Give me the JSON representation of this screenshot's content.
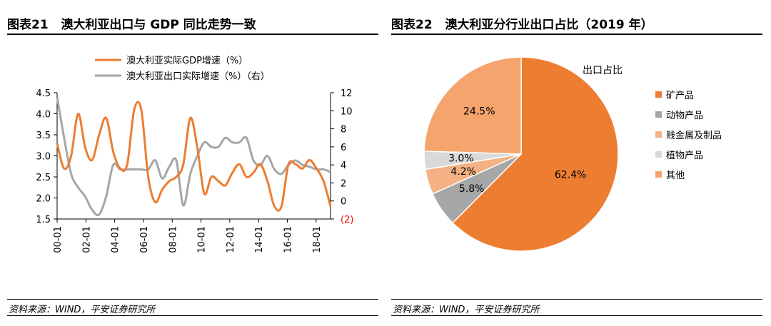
{
  "panels": {
    "left": {
      "title_num": "图表21",
      "title": "澳大利亚出口与 GDP 同比走势一致",
      "source": "资料来源：WIND，平安证券研究所"
    },
    "right": {
      "title_num": "图表22",
      "title": "澳大利亚分行业出口占比（2019 年）",
      "source": "资料来源：WIND，平安证券研究所"
    }
  },
  "colors": {
    "orange": "#ed7d31",
    "gray": "#a6a6a6",
    "light_orange": "#f4b183",
    "light_gray": "#d9d9d9",
    "red": "#ff0000"
  },
  "chart_data": [
    {
      "type": "line",
      "title": "",
      "categories": [
        "00-01",
        "02-01",
        "04-01",
        "06-01",
        "08-01",
        "10-01",
        "12-01",
        "14-01",
        "16-01",
        "18-01"
      ],
      "left_axis": {
        "ylim": [
          1.5,
          4.5
        ],
        "ticks": [
          "4.5",
          "4.0",
          "3.5",
          "3.0",
          "2.5",
          "2.0",
          "1.5"
        ]
      },
      "right_axis": {
        "ylim": [
          -2,
          12
        ],
        "ticks": [
          "12",
          "10",
          "8",
          "6",
          "4",
          "2",
          "0",
          "(2)"
        ]
      },
      "series": [
        {
          "name": "澳大利亚实际GDP增速（%）",
          "axis": "left",
          "x": [
            0.0,
            0.5,
            1.0,
            1.5,
            2.0,
            2.5,
            3.0,
            3.5,
            4.0,
            4.5,
            5.0,
            5.5,
            6.0,
            6.5,
            7.0,
            7.5,
            8.0,
            8.5,
            9.0,
            9.5,
            10.0,
            10.5,
            11.0,
            11.5,
            12.0,
            12.5,
            13.0,
            13.5,
            14.0,
            14.5,
            15.0,
            15.5,
            16.0,
            16.5,
            17.0,
            17.5,
            18.0,
            18.5,
            19.0,
            19.5
          ],
          "values": [
            3.3,
            2.7,
            3.0,
            4.0,
            3.2,
            2.9,
            3.5,
            3.9,
            3.1,
            2.7,
            2.8,
            4.1,
            4.1,
            2.5,
            1.9,
            2.2,
            2.4,
            2.5,
            2.8,
            3.9,
            3.2,
            2.1,
            2.5,
            2.4,
            2.3,
            2.6,
            2.8,
            2.5,
            2.6,
            2.8,
            2.4,
            1.8,
            1.8,
            2.8,
            2.8,
            2.7,
            2.9,
            2.7,
            2.4,
            1.8
          ]
        },
        {
          "name": "澳大利亚出口实际增速（%）（右）",
          "axis": "right",
          "x": [
            0.0,
            0.5,
            1.0,
            1.5,
            2.0,
            2.5,
            3.0,
            3.5,
            4.0,
            4.5,
            5.0,
            5.5,
            6.0,
            6.5,
            7.0,
            7.5,
            8.0,
            8.5,
            9.0,
            9.5,
            10.0,
            10.5,
            11.0,
            11.5,
            12.0,
            12.5,
            13.0,
            13.5,
            14.0,
            14.5,
            15.0,
            15.5,
            16.0,
            16.5,
            17.0,
            17.5,
            18.0,
            18.5,
            19.0,
            19.5
          ],
          "values": [
            11.5,
            7.0,
            3.0,
            1.5,
            0.5,
            -1.0,
            -1.5,
            0.5,
            4.0,
            3.5,
            3.5,
            3.5,
            3.5,
            3.5,
            4.5,
            2.5,
            3.8,
            4.5,
            -0.5,
            3.0,
            5.0,
            6.5,
            6.0,
            6.0,
            7.0,
            6.5,
            6.5,
            7.0,
            4.5,
            4.0,
            5.0,
            3.5,
            3.0,
            4.0,
            4.5,
            4.0,
            3.8,
            3.5,
            3.5,
            3.2
          ]
        }
      ]
    },
    {
      "type": "pie",
      "title": "出口占比",
      "categories": [
        "矿产品",
        "动物产品",
        "贱金属及制品",
        "植物产品",
        "其他"
      ],
      "values": [
        62.4,
        5.8,
        4.2,
        3.0,
        24.5
      ],
      "labels": [
        "62.4%",
        "5.8%",
        "4.2%",
        "3.0%",
        "24.5%"
      ],
      "colors": [
        "#ed7d31",
        "#a6a6a6",
        "#f4b183",
        "#d9d9d9",
        "#f4a46c"
      ]
    }
  ]
}
